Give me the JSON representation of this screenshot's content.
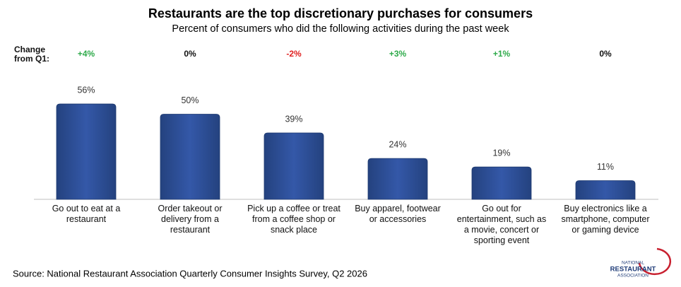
{
  "chart_data": {
    "type": "bar",
    "title": "Restaurants are the top discretionary purchases for consumers",
    "subtitle": "Percent of consumers who did the following activities during the past week",
    "categories": [
      "Go out to eat at a restaurant",
      "Order takeout or delivery from a restaurant",
      "Pick up a coffee or treat from a coffee shop or snack place",
      "Buy apparel, footwear or accessories",
      "Go out for entertainment, such as a movie, concert or sporting event",
      "Buy electronics like a smartphone, computer or gaming device"
    ],
    "values": [
      56,
      50,
      39,
      24,
      19,
      11
    ],
    "value_labels": [
      "56%",
      "50%",
      "39%",
      "24%",
      "19%",
      "11%"
    ],
    "color": "#2f4f9e",
    "ylim": [
      0,
      60
    ],
    "change": {
      "label": "Change from Q1:",
      "values": [
        4,
        0,
        -2,
        3,
        1,
        0
      ],
      "value_labels": [
        "+4%",
        "0%",
        "-2%",
        "+3%",
        "+1%",
        "0%"
      ]
    },
    "source": "Source: National Restaurant Association Quarterly Consumer Insights Survey, Q2 2026"
  },
  "logo": {
    "line1": "NATIONAL",
    "line2": "RESTAURANT",
    "line3": "ASSOCIATION"
  }
}
